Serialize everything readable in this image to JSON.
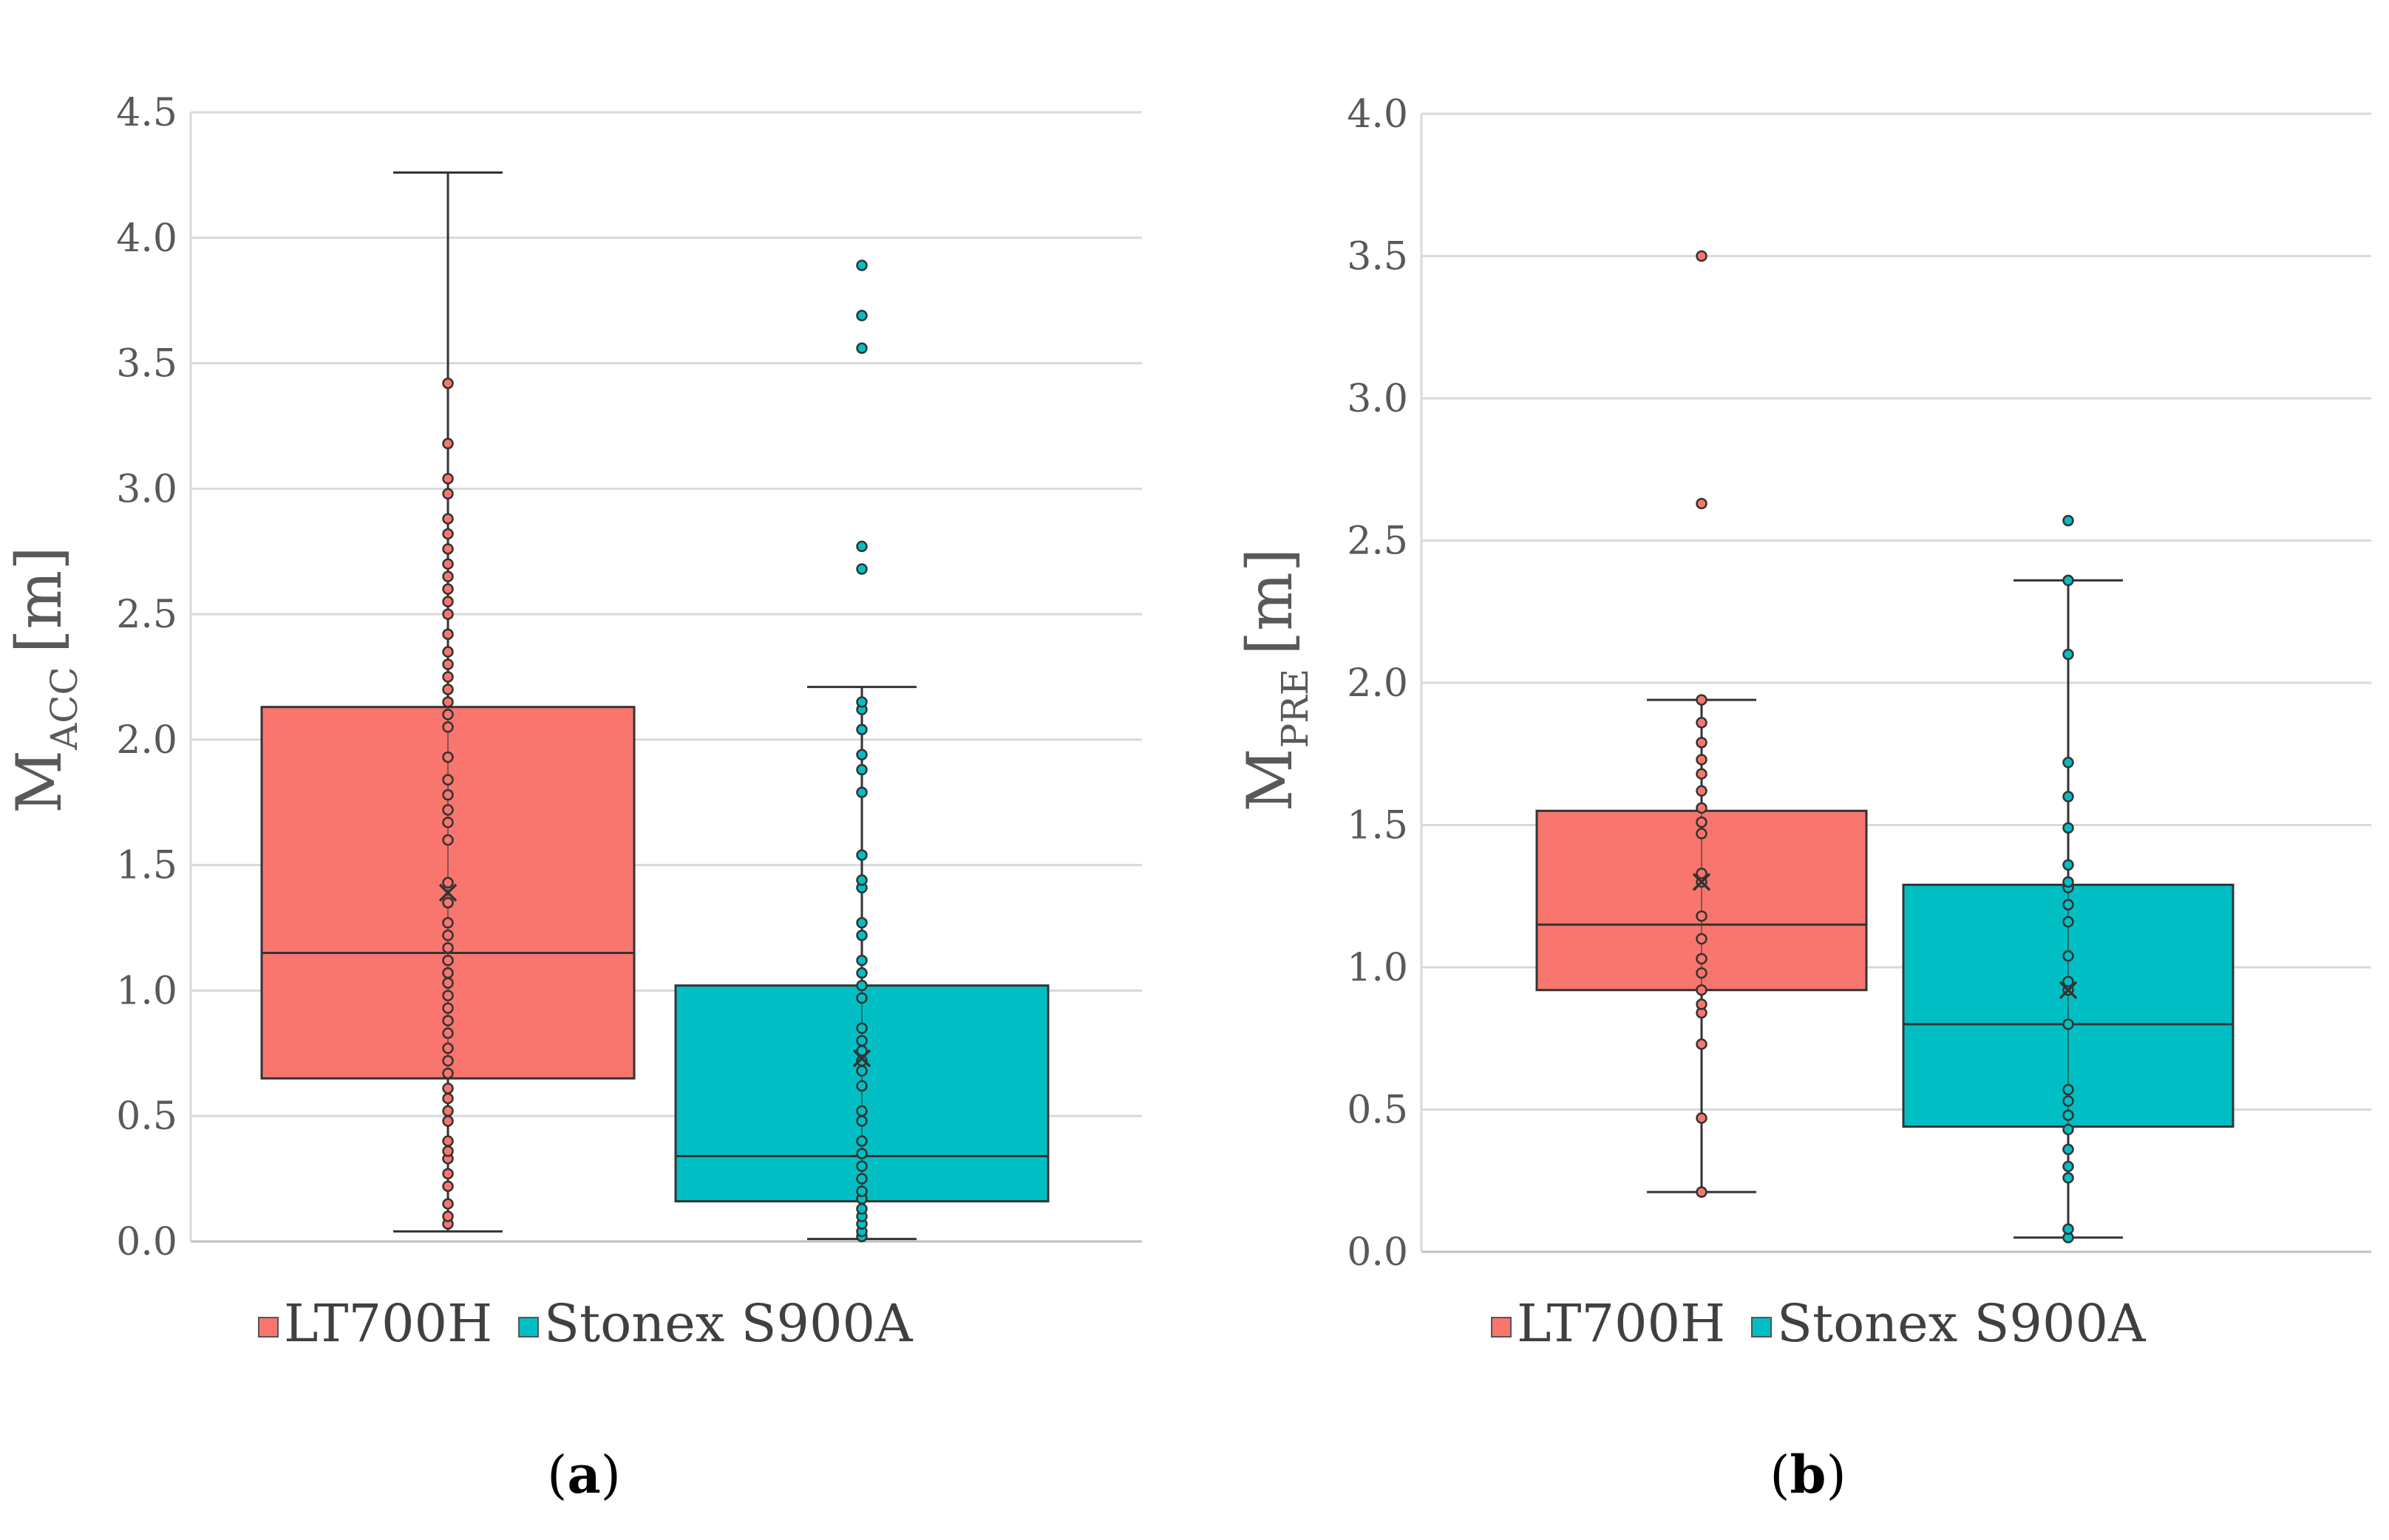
{
  "chart_data": [
    {
      "type": "box",
      "panel_label": "a",
      "ylabel": {
        "main": "M",
        "sub": "ACC",
        "unit": "[m]"
      },
      "ylim": [
        0,
        4.5
      ],
      "yticks": [
        "0.0",
        "0.5",
        "1.0",
        "1.5",
        "2.0",
        "2.5",
        "3.0",
        "3.5",
        "4.0",
        "4.5"
      ],
      "grid": true,
      "legend_position": "bottom",
      "series": [
        {
          "name": "LT700H",
          "color": "#F8766D",
          "whisker_low": 0.04,
          "q1": 0.65,
          "median": 1.15,
          "q3": 2.13,
          "whisker_high": 4.26,
          "mean": 1.39,
          "points": [
            0.07,
            0.1,
            0.15,
            0.22,
            0.27,
            0.33,
            0.36,
            0.4,
            0.48,
            0.52,
            0.57,
            0.61,
            0.67,
            0.72,
            0.77,
            0.83,
            0.88,
            0.93,
            0.98,
            1.03,
            1.07,
            1.12,
            1.17,
            1.22,
            1.27,
            1.35,
            1.43,
            1.6,
            1.67,
            1.72,
            1.78,
            1.84,
            1.93,
            2.05,
            2.1,
            2.15,
            2.2,
            2.25,
            2.3,
            2.35,
            2.42,
            2.5,
            2.55,
            2.6,
            2.65,
            2.7,
            2.76,
            2.82,
            2.88,
            2.98,
            3.04,
            3.18,
            3.42
          ]
        },
        {
          "name": "Stonex S900A",
          "color": "#00BFC4",
          "whisker_low": 0.01,
          "q1": 0.16,
          "median": 0.34,
          "q3": 1.02,
          "whisker_high": 2.21,
          "mean": 0.73,
          "points": [
            0.02,
            0.04,
            0.07,
            0.1,
            0.13,
            0.17,
            0.2,
            0.25,
            0.3,
            0.35,
            0.4,
            0.48,
            0.52,
            0.62,
            0.68,
            0.72,
            0.76,
            0.8,
            0.85,
            0.97,
            1.02,
            1.07,
            1.12,
            1.22,
            1.27,
            1.41,
            1.44,
            1.54,
            1.79,
            1.88,
            1.94,
            2.04,
            2.12,
            2.15,
            2.68,
            2.77,
            3.56,
            3.69,
            3.89
          ]
        }
      ]
    },
    {
      "type": "box",
      "panel_label": "b",
      "ylabel": {
        "main": "M",
        "sub": "PRE",
        "unit": "[m]"
      },
      "ylim": [
        0,
        4.0
      ],
      "yticks": [
        "0.0",
        "0.5",
        "1.0",
        "1.5",
        "2.0",
        "2.5",
        "3.0",
        "3.5",
        "4.0"
      ],
      "grid": true,
      "legend_position": "bottom",
      "series": [
        {
          "name": "LT700H",
          "color": "#F8766D",
          "whisker_low": 0.21,
          "q1": 0.92,
          "median": 1.15,
          "q3": 1.55,
          "whisker_high": 1.94,
          "mean": 1.3,
          "points": [
            0.21,
            0.47,
            0.73,
            0.84,
            0.87,
            0.92,
            0.98,
            1.03,
            1.1,
            1.18,
            1.3,
            1.33,
            1.47,
            1.51,
            1.56,
            1.62,
            1.68,
            1.73,
            1.79,
            1.86,
            1.94,
            2.63,
            3.5
          ]
        },
        {
          "name": "Stonex S900A",
          "color": "#00BFC4",
          "whisker_low": 0.05,
          "q1": 0.44,
          "median": 0.8,
          "q3": 1.29,
          "whisker_high": 2.36,
          "mean": 0.92,
          "points": [
            0.05,
            0.08,
            0.26,
            0.3,
            0.36,
            0.43,
            0.48,
            0.53,
            0.57,
            0.8,
            0.92,
            0.95,
            1.04,
            1.16,
            1.22,
            1.28,
            1.3,
            1.36,
            1.49,
            1.6,
            1.72,
            2.1,
            2.36,
            2.57
          ]
        }
      ]
    }
  ]
}
